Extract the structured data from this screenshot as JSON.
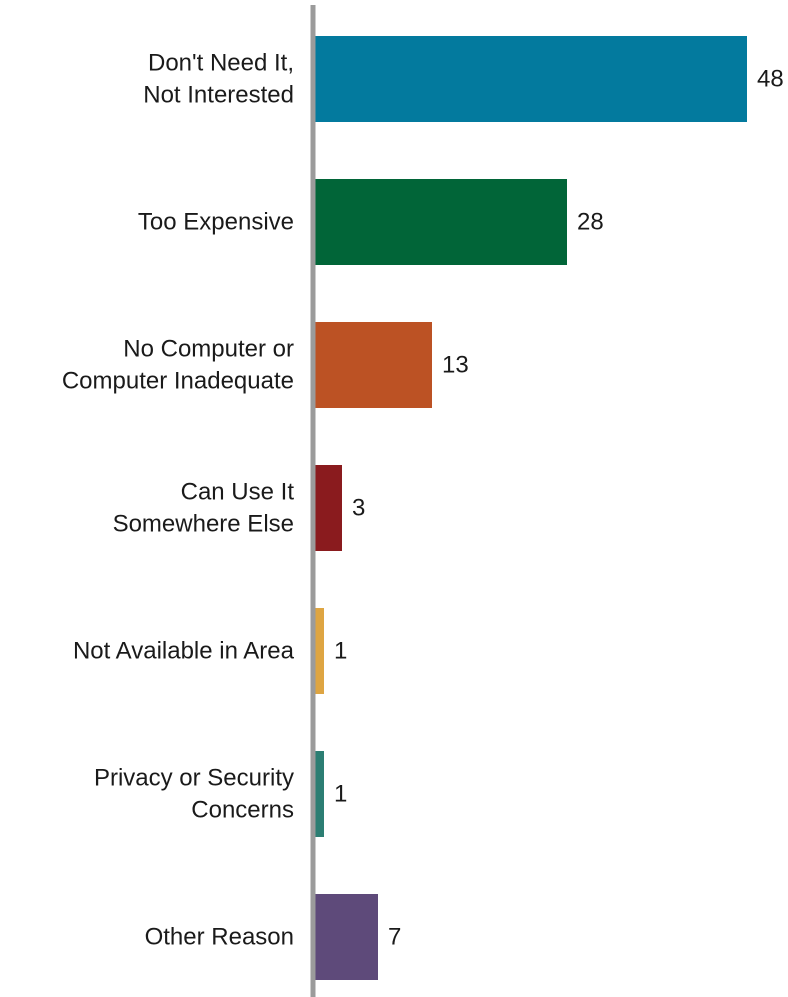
{
  "chart_data": {
    "type": "bar",
    "orientation": "horizontal",
    "title": "",
    "xlabel": "",
    "ylabel": "",
    "categories": [
      [
        "Don't Need It,",
        "Not Interested"
      ],
      [
        "Too Expensive"
      ],
      [
        "No Computer or",
        "Computer Inadequate"
      ],
      [
        "Can Use It",
        "Somewhere Else"
      ],
      [
        "Not Available in Area"
      ],
      [
        "Privacy or Security",
        "Concerns"
      ],
      [
        "Other Reason"
      ]
    ],
    "values": [
      48,
      28,
      13,
      3,
      1,
      1,
      7
    ],
    "data_labels": [
      "48",
      "28",
      "13",
      "3",
      "1",
      "1",
      "7"
    ],
    "colors": [
      "#037A9E",
      "#016538",
      "#BC5224",
      "#8A1B1E",
      "#DEA542",
      "#2C7E73",
      "#5E4A7A"
    ],
    "axis_color": "#9B9B9B",
    "xlim": [
      0,
      48
    ],
    "grid": false,
    "legend": "none"
  }
}
